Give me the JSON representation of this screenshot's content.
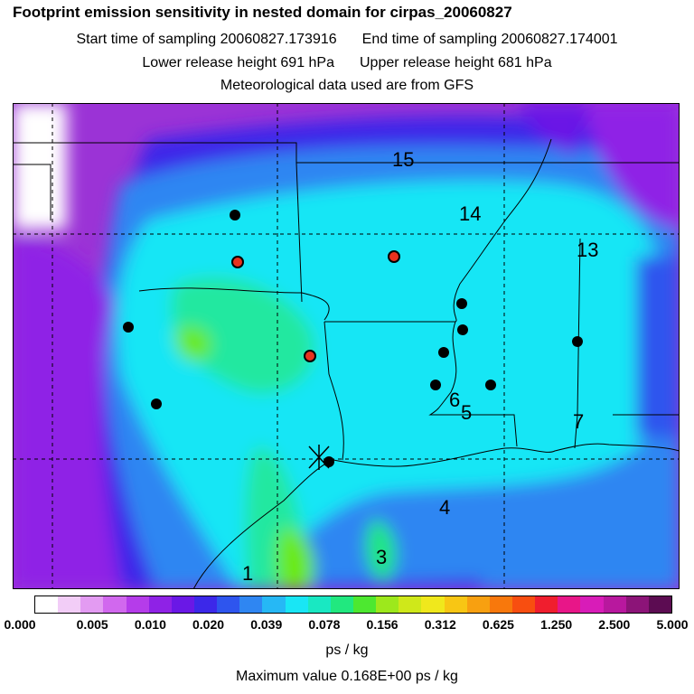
{
  "header": {
    "title": "Footprint emission sensitivity in nested domain for cirpas_20060827",
    "start_time": "Start time of sampling 20060827.173916",
    "end_time": "End time of sampling 20060827.174001",
    "lower_height": "Lower release height  691 hPa",
    "upper_height": "Upper release height  681 hPa",
    "met_data": "Meteorological data used are from GFS"
  },
  "map": {
    "region_labels": [
      "15",
      "14",
      "13",
      "6",
      "5",
      "7",
      "4",
      "3",
      "1"
    ],
    "colors": {
      "background_far": "#9b33d6",
      "background_mid": "#2f63f0",
      "plume": "#19e8f0",
      "plume_core": "#25e89a",
      "hotspot": "#6aea18",
      "site_black": "#000000",
      "site_red": "#e8321e"
    }
  },
  "colorbar": {
    "colors": [
      "#ffffff",
      "#f2cdf7",
      "#e39bf2",
      "#d168ee",
      "#b53cea",
      "#8f22e6",
      "#6a18e6",
      "#3c28e9",
      "#2e55ee",
      "#2f86f2",
      "#26b8f5",
      "#19e6f5",
      "#19e8c2",
      "#21e87f",
      "#4de830",
      "#9de81c",
      "#cfe81a",
      "#f0e81c",
      "#f8c614",
      "#f8a010",
      "#f8780c",
      "#f84e10",
      "#f01e2e",
      "#e81688",
      "#d81cb8",
      "#b8189e",
      "#8c1478",
      "#5c0c52"
    ],
    "tick_labels": [
      "0.000",
      "0.005",
      "0.010",
      "0.020",
      "0.039",
      "0.078",
      "0.156",
      "0.312",
      "0.625",
      "1.250",
      "2.500",
      "5.000"
    ],
    "unit": "ps / kg"
  },
  "max_value_text": "Maximum value  0.168E+00 ps / kg"
}
